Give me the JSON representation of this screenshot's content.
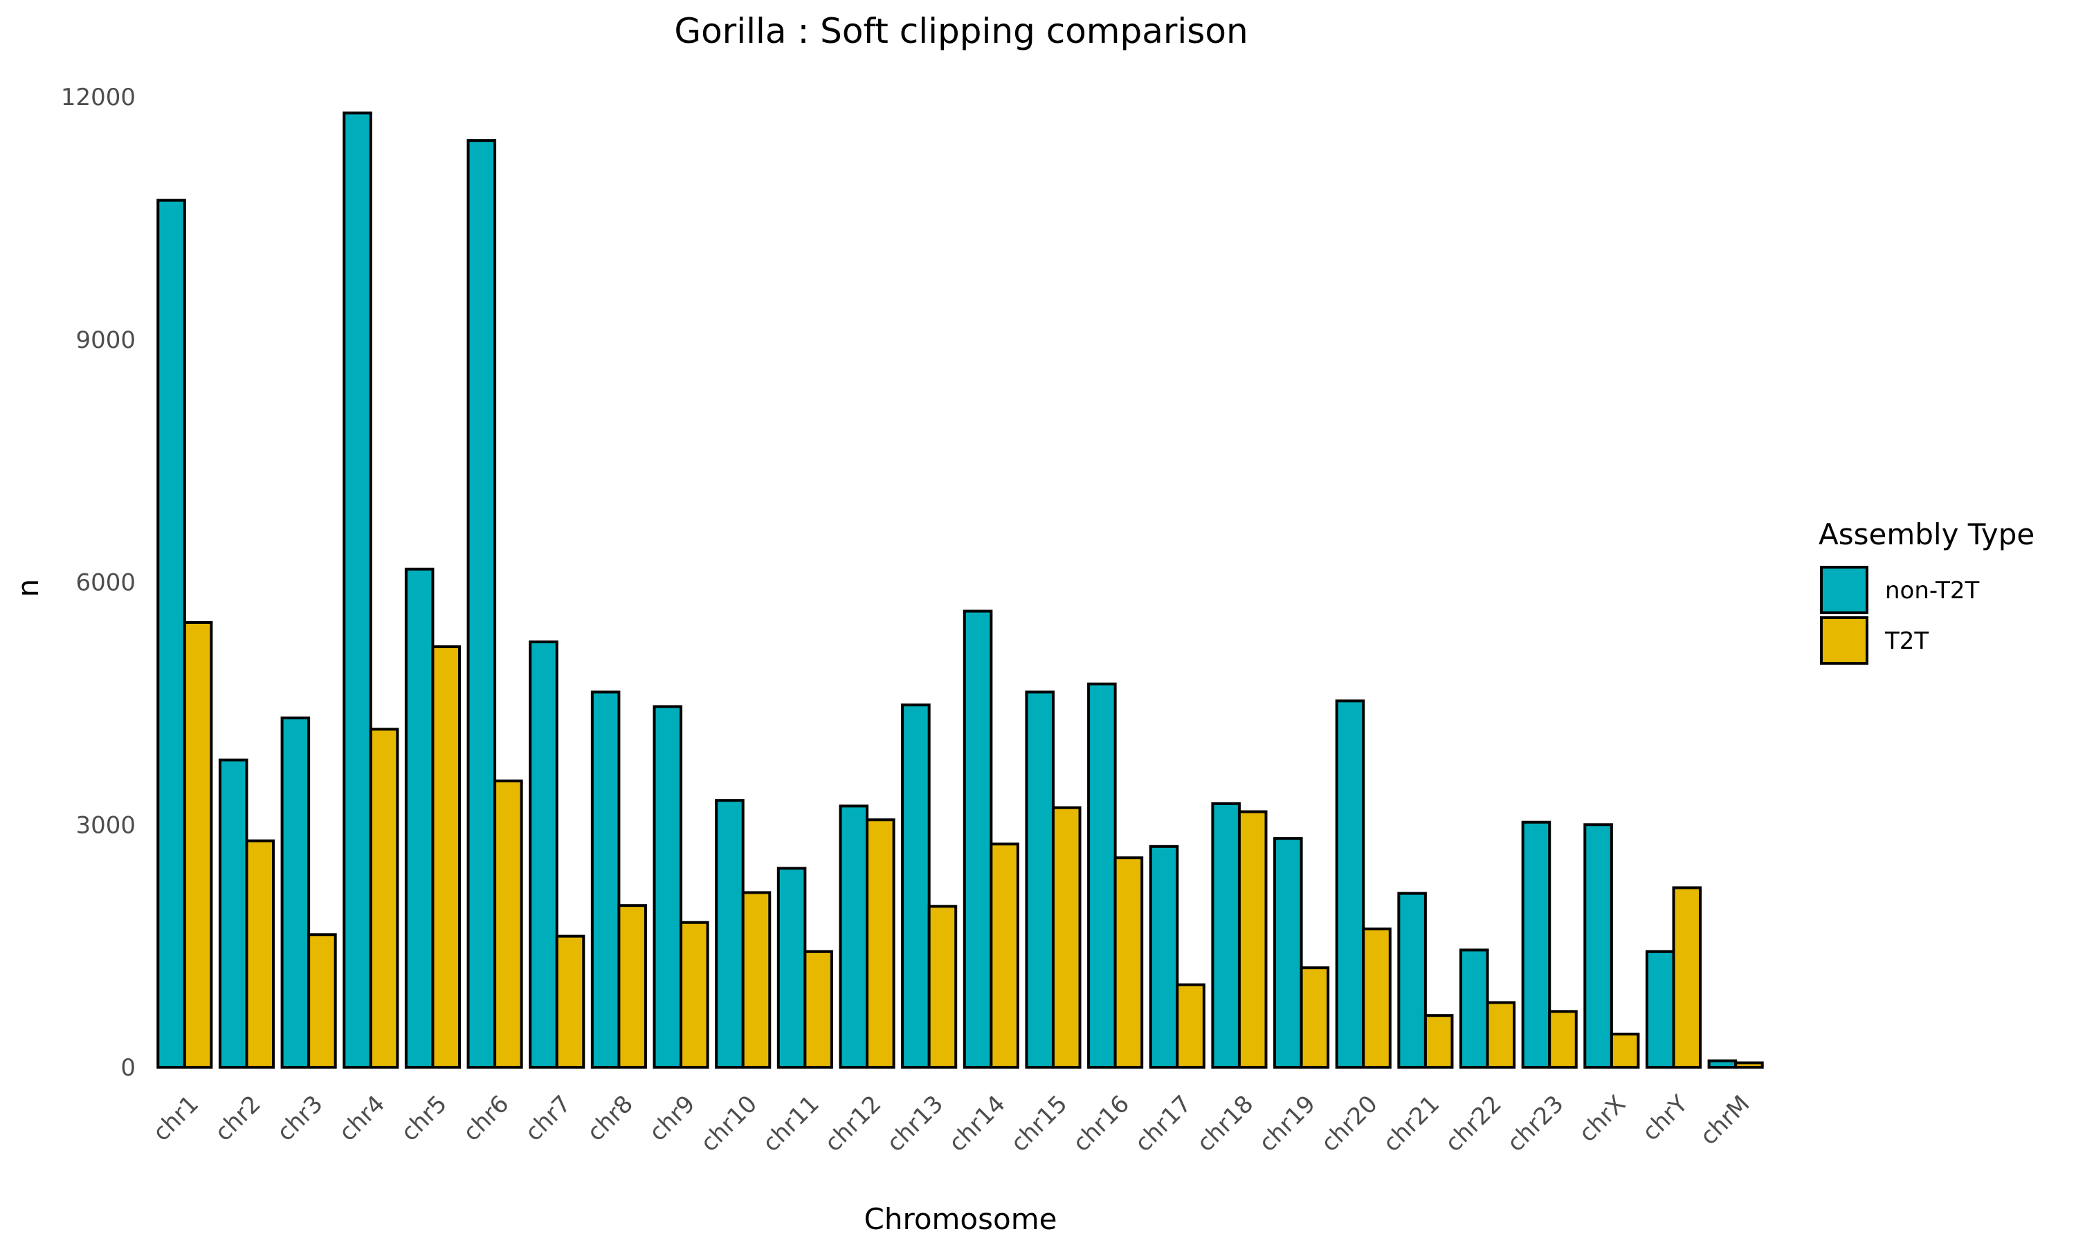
{
  "chart_data": {
    "type": "bar",
    "title": "Gorilla : Soft clipping comparison",
    "xlabel": "Chromosome",
    "ylabel": "n",
    "ylim": [
      0,
      12000
    ],
    "yticks": [
      0,
      3000,
      6000,
      9000,
      12000
    ],
    "grid": false,
    "legend": {
      "title": "Assembly Type",
      "position": "right"
    },
    "categories": [
      "chr1",
      "chr2",
      "chr3",
      "chr4",
      "chr5",
      "chr6",
      "chr7",
      "chr8",
      "chr9",
      "chr10",
      "chr11",
      "chr12",
      "chr13",
      "chr14",
      "chr15",
      "chr16",
      "chr17",
      "chr18",
      "chr19",
      "chr20",
      "chr21",
      "chr22",
      "chr23",
      "chrX",
      "chrY",
      "chrM"
    ],
    "series": [
      {
        "name": "non-T2T",
        "color": "#00AEBB",
        "values": [
          10720,
          3800,
          4320,
          11800,
          6160,
          11460,
          5260,
          4640,
          4460,
          3300,
          2460,
          3230,
          4480,
          5640,
          4640,
          4740,
          2730,
          3260,
          2830,
          4530,
          2150,
          1450,
          3030,
          3000,
          1430,
          80
        ]
      },
      {
        "name": "T2T",
        "color": "#E7B800",
        "values": [
          5500,
          2800,
          1640,
          4180,
          5200,
          3540,
          1620,
          2000,
          1790,
          2160,
          1430,
          3060,
          1990,
          2760,
          3210,
          2590,
          1020,
          3160,
          1230,
          1710,
          640,
          800,
          690,
          410,
          2220,
          55
        ]
      }
    ]
  }
}
